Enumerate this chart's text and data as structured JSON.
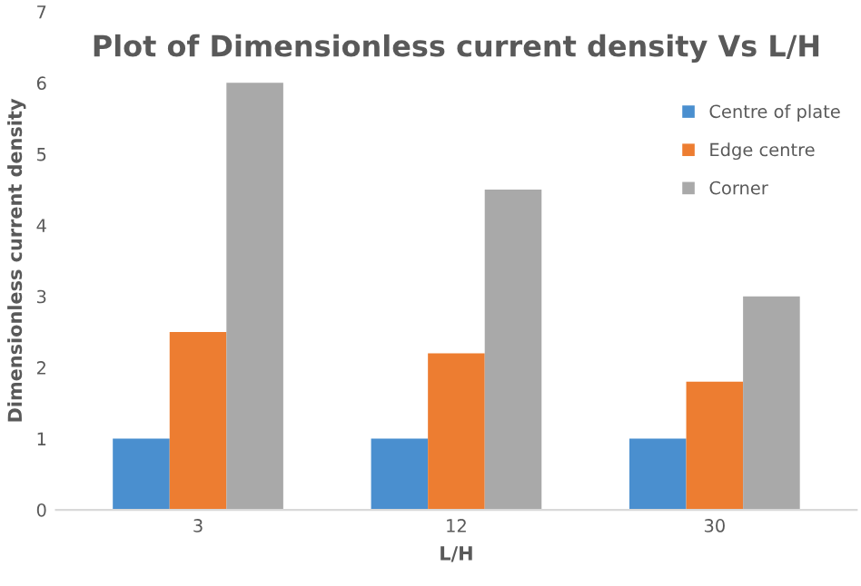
{
  "chart_data": {
    "type": "bar",
    "title": "Plot of Dimensionless current density Vs L/H",
    "xlabel": "L/H",
    "ylabel": "Dimensionless current density",
    "categories": [
      "3",
      "12",
      "30"
    ],
    "series": [
      {
        "name": "Centre of plate",
        "color": "#4a8fcf",
        "values": [
          1,
          1,
          1
        ]
      },
      {
        "name": "Edge centre",
        "color": "#ed7d31",
        "values": [
          2.5,
          2.2,
          1.8
        ]
      },
      {
        "name": "Corner",
        "color": "#a9a9a9",
        "values": [
          6,
          4.5,
          3
        ]
      }
    ],
    "ylim": [
      0,
      7
    ],
    "yticks": [
      0,
      1,
      2,
      3,
      4,
      5,
      6,
      7
    ],
    "grid": false,
    "legend": "right"
  }
}
